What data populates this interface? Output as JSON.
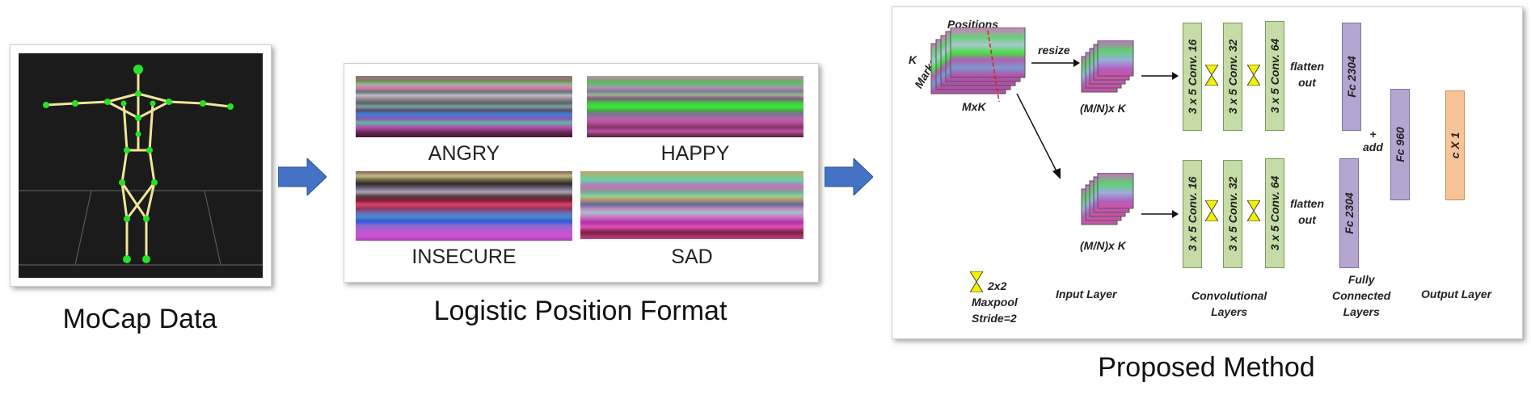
{
  "captions": {
    "mocap": "MoCap Data",
    "logistic": "Logistic Position Format",
    "proposed": "Proposed Method"
  },
  "emotions": [
    "ANGRY",
    "HAPPY",
    "INSECURE",
    "SAD"
  ],
  "diagram": {
    "positions": "Positions",
    "k_markers": "K",
    "markers": "Markers",
    "mxk": "MxK",
    "resize": "resize",
    "mnk_top": "(M/N)x K",
    "mnk_bottom": "(M/N)x K",
    "conv1": "3 x 5 Conv. 16",
    "conv2": "3 x 5 Conv. 32",
    "conv3": "3 x 5 Conv. 64",
    "flatten_top": "flatten\nout",
    "flatten_bottom": "flatten\nout",
    "fc_top": "Fc 2304",
    "fc_bottom": "Fc 2304",
    "fc_mid": "Fc 960",
    "add": "+\nadd",
    "output": "c X 1",
    "maxpool_size": "2x2",
    "maxpool_label": "Maxpool",
    "stride": "Stride=2",
    "input_layer": "Input Layer",
    "conv_layers": "Convolutional\nLayers",
    "fc_layers": "Fully\nConnected\nLayers",
    "output_layer": "Output Layer"
  },
  "colors": {
    "arrow_blue": "#4472c4",
    "conv_fill": "#c5dca6",
    "fc_fill": "#b5a5d1",
    "out_fill": "#f8c397",
    "maxpool_yellow": "#f2f200"
  }
}
